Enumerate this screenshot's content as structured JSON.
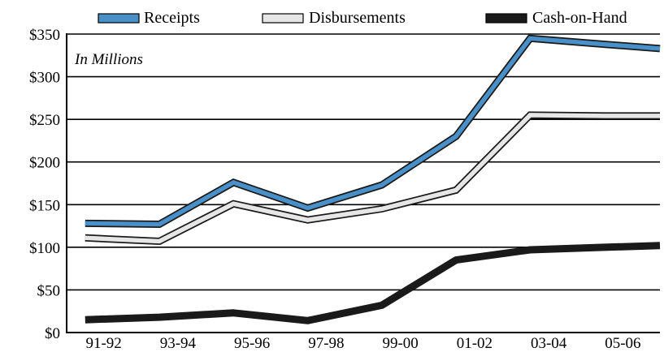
{
  "chart_data": {
    "type": "line",
    "annotation": "In Millions",
    "categories": [
      "91-92",
      "93-94",
      "95-96",
      "97-98",
      "99-00",
      "01-02",
      "03-04",
      "05-06"
    ],
    "x": [
      1991.5,
      1993.5,
      1995.5,
      1997.5,
      1999.5,
      2001.5,
      2003.5,
      2005.5
    ],
    "series": [
      {
        "name": "Receipts",
        "color": "#4a90c8",
        "x": [
          1991,
          1993,
          1995,
          1997,
          1999,
          2001,
          2003,
          2005,
          2006.5
        ],
        "values": [
          128,
          127,
          176,
          146,
          173,
          230,
          345,
          338,
          333
        ]
      },
      {
        "name": "Disbursements",
        "color": "#e6e6e6",
        "x": [
          1991,
          1993,
          1995,
          1997,
          1999,
          2001,
          2003,
          2005,
          2006.5
        ],
        "values": [
          111,
          107,
          151,
          132,
          145,
          167,
          255,
          254,
          254
        ]
      },
      {
        "name": "Cash-on-Hand",
        "color": "#1a1a1a",
        "x": [
          1991,
          1993,
          1995,
          1997,
          1999,
          2001,
          2003,
          2005,
          2006.5
        ],
        "values": [
          15,
          18,
          23,
          14,
          32,
          85,
          97,
          100,
          102
        ]
      }
    ],
    "yticks": [
      "$0",
      "$50",
      "$100",
      "$150",
      "$200",
      "$250",
      "$300",
      "$350"
    ],
    "ylim": [
      0,
      350
    ],
    "grid": true,
    "legend": "top"
  }
}
